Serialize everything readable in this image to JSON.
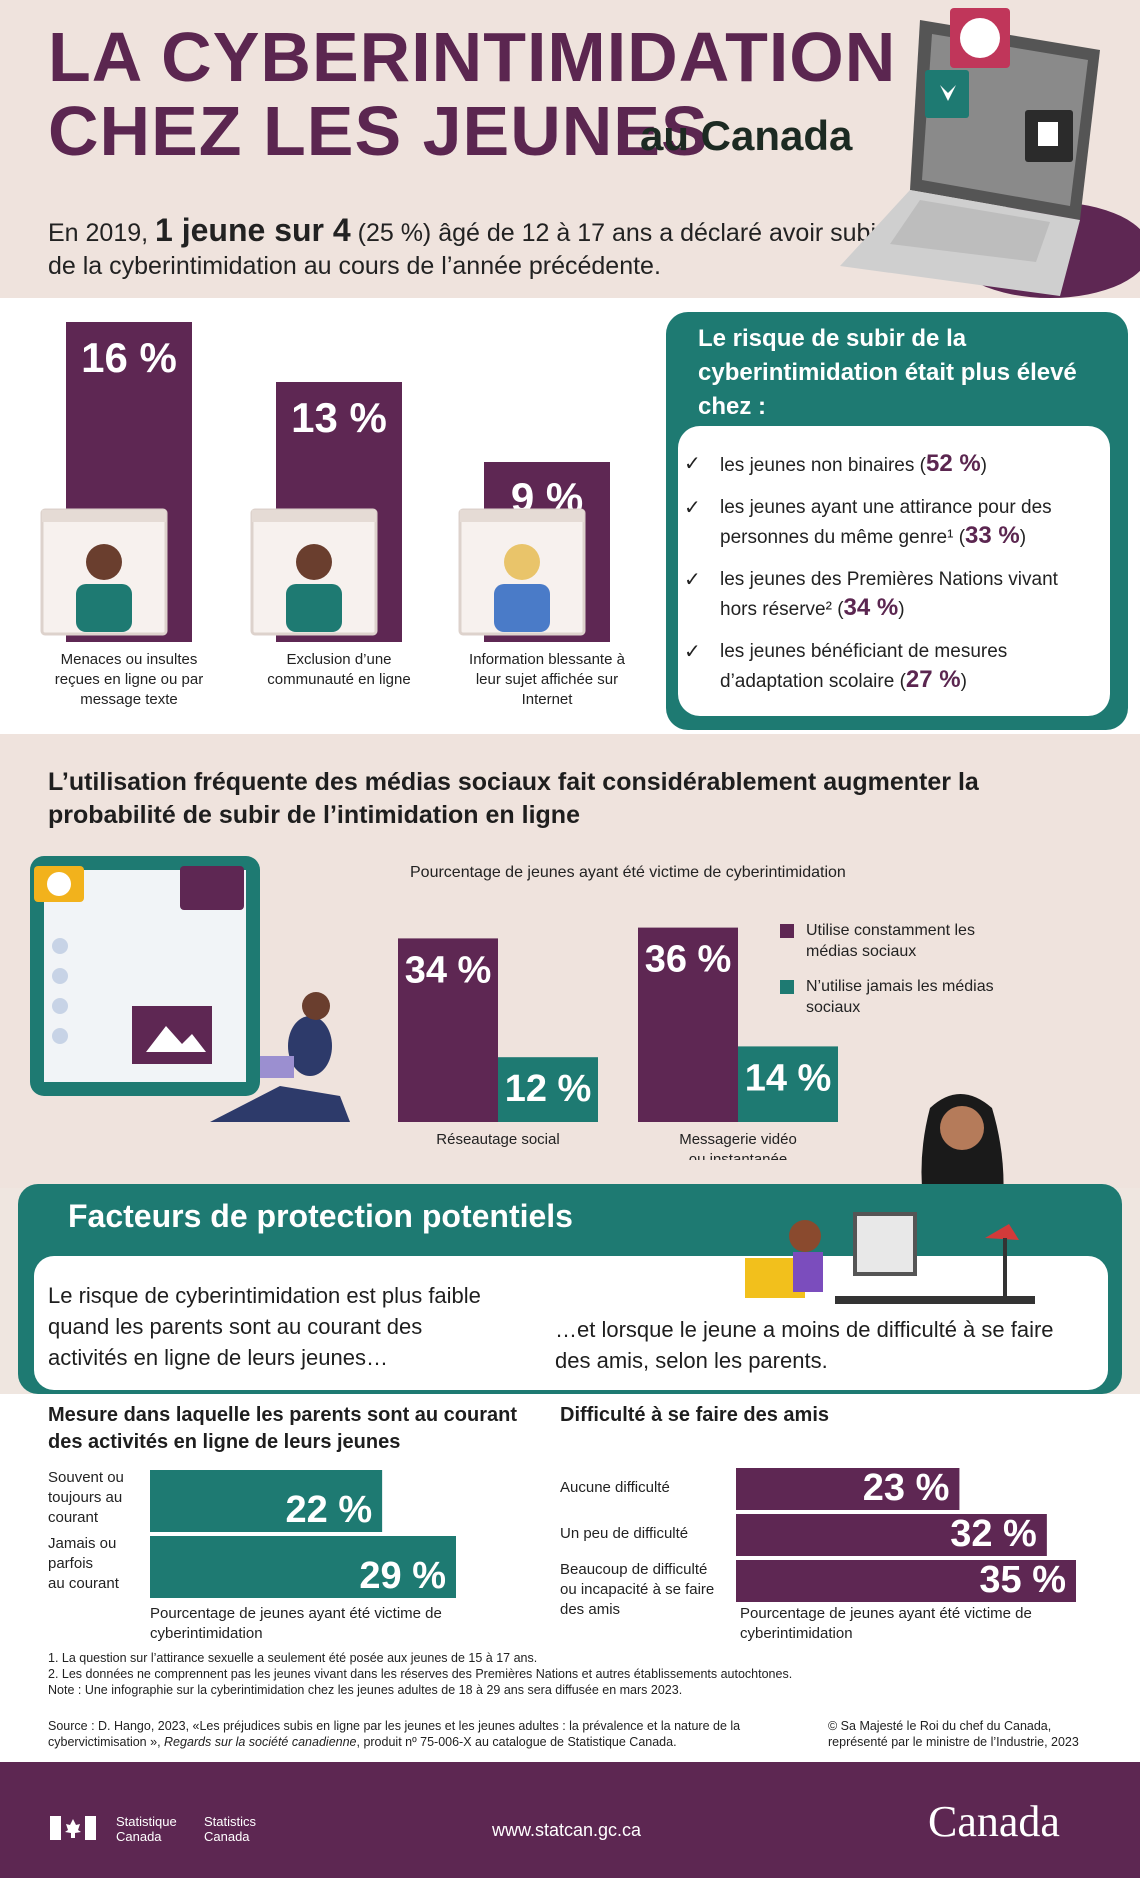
{
  "header": {
    "title_line1": "LA CYBERINTIMIDATION",
    "title_line2": "CHEZ LES JEUNES",
    "title_suffix": "au Canada",
    "intro_pre": "En 2019, ",
    "intro_bold": "1 jeune sur 4",
    "intro_post": " (25 %) âgé de 12 à 17 ans a déclaré avoir subi de la cyberintimidation au cours de l’année précédente."
  },
  "chart_data": [
    {
      "type": "bar",
      "categories": [
        "Menaces ou insultes reçues en ligne ou par message texte",
        "Exclusion d’une communauté en ligne",
        "Information blessante à leur sujet affichée sur Internet"
      ],
      "values": [
        16,
        13,
        9
      ],
      "value_labels": [
        "16 %",
        "13 %",
        "9 %"
      ],
      "caption_lines": [
        [
          "Menaces ou insultes",
          "reçues en ligne ou par",
          "message texte"
        ],
        [
          "Exclusion d’une",
          "communauté en ligne"
        ],
        [
          "Information blessante à",
          "leur sujet affichée sur",
          "Internet"
        ]
      ],
      "ylim": [
        0,
        16
      ]
    },
    {
      "type": "bar",
      "title": "Pourcentage de jeunes ayant été victime de cyberintimidation",
      "categories": [
        "Réseautage social",
        "Messagerie vidéo ou instantanée"
      ],
      "category_lines": [
        [
          "Réseautage social"
        ],
        [
          "Messagerie vidéo",
          "ou instantanée"
        ]
      ],
      "series": [
        {
          "name": "Utilise constamment les médias sociaux",
          "name_lines": [
            "Utilise constamment les",
            "médias sociaux"
          ],
          "values": [
            34,
            36
          ],
          "labels": [
            "34 %",
            "36 %"
          ],
          "color": "#5e2753"
        },
        {
          "name": "N’utilise jamais les médias sociaux",
          "name_lines": [
            "N’utilise jamais les médias",
            "sociaux"
          ],
          "values": [
            12,
            14
          ],
          "labels": [
            "12 %",
            "14 %"
          ],
          "color": "#1e7a72"
        }
      ],
      "ylim": [
        0,
        36
      ]
    },
    {
      "type": "bar",
      "orientation": "horizontal",
      "title": "Mesure dans laquelle les parents sont au courant des activités en ligne de leurs jeunes",
      "categories": [
        "Souvent ou toujours au courant",
        "Jamais ou parfois au courant"
      ],
      "category_lines": [
        [
          "Souvent ou",
          "toujours au",
          "courant"
        ],
        [
          "Jamais ou",
          "parfois",
          "au courant"
        ]
      ],
      "values": [
        22,
        29
      ],
      "value_labels": [
        "22 %",
        "29 %"
      ],
      "xlabel": "Pourcentage de jeunes ayant été victime de cyberintimidation",
      "color": "#1e7a72"
    },
    {
      "type": "bar",
      "orientation": "horizontal",
      "title": "Difficulté à se faire des amis",
      "categories": [
        "Aucune difficulté",
        "Un peu de difficulté",
        "Beaucoup de difficulté ou incapacité à se faire des amis"
      ],
      "category_lines": [
        [
          "Aucune difficulté"
        ],
        [
          "Un peu de difficulté"
        ],
        [
          "Beaucoup de difficulté",
          "ou incapacité à se faire",
          "des amis"
        ]
      ],
      "values": [
        23,
        32,
        35
      ],
      "value_labels": [
        "23 %",
        "32 %",
        "35 %"
      ],
      "xlabel": "Pourcentage de jeunes ayant été victime de cyberintimidation",
      "color": "#5e2753"
    }
  ],
  "risk": {
    "title": "Le risque de subir de la cyberintimidation était plus élevé chez :",
    "items": [
      {
        "text": "les jeunes non binaires (",
        "value": "52 %",
        "after": ")"
      },
      {
        "text": "les jeunes ayant une attirance pour des personnes du même genre¹ (",
        "value": "33 %",
        "after": ")"
      },
      {
        "text": "les jeunes des Premières Nations vivant hors réserve² (",
        "value": "34 %",
        "after": ")"
      },
      {
        "text": "les jeunes bénéficiant de mesures d’adaptation scolaire (",
        "value": "27 %",
        "after": ")"
      }
    ]
  },
  "social": {
    "title": "L’utilisation fréquente des médias sociaux fait considérablement augmenter la probabilité de subir de l’intimidation en ligne"
  },
  "protection": {
    "title": "Facteurs de protection potentiels",
    "left_text": "Le risque de cyberintimidation est plus faible quand les parents sont au courant des activités en ligne de leurs jeunes…",
    "right_text": "…et lorsque le jeune a moins de difficulté à se faire des amis, selon les parents."
  },
  "notes": {
    "n1": "1. La question sur l’attirance sexuelle a seulement été posée aux jeunes de 15 à 17 ans.",
    "n2": "2. Les données ne comprennent pas les jeunes vivant dans les réserves des Premières Nations et autres établissements autochtones.",
    "n3": "Note : Une infographie sur la cyberintimidation chez les jeunes adultes de 18 à 29 ans sera diffusée en mars 2023.",
    "source_a": "Source : D. Hango, 2023, «Les préjudices subis en ligne par les jeunes et les jeunes adultes : la prévalence et la nature de la",
    "source_b1": "cybervictimisation », ",
    "source_b_it": "Regards sur la société canadienne",
    "source_b2": ", produit nº 75-006-X au catalogue de Statistique Canada.",
    "copyright1": "© Sa Majesté le Roi du chef du Canada,",
    "copyright2": "représenté par le ministre de l’Industrie, 2023"
  },
  "footer": {
    "sc_fr1": "Statistique",
    "sc_fr2": "Canada",
    "sc_en1": "Statistics",
    "sc_en2": "Canada",
    "url": "www.statcan.gc.ca",
    "wordmark": "Canada"
  },
  "colors": {
    "plum": "#5e2753",
    "teal": "#1e7a72",
    "beige": "#efe3dd"
  }
}
